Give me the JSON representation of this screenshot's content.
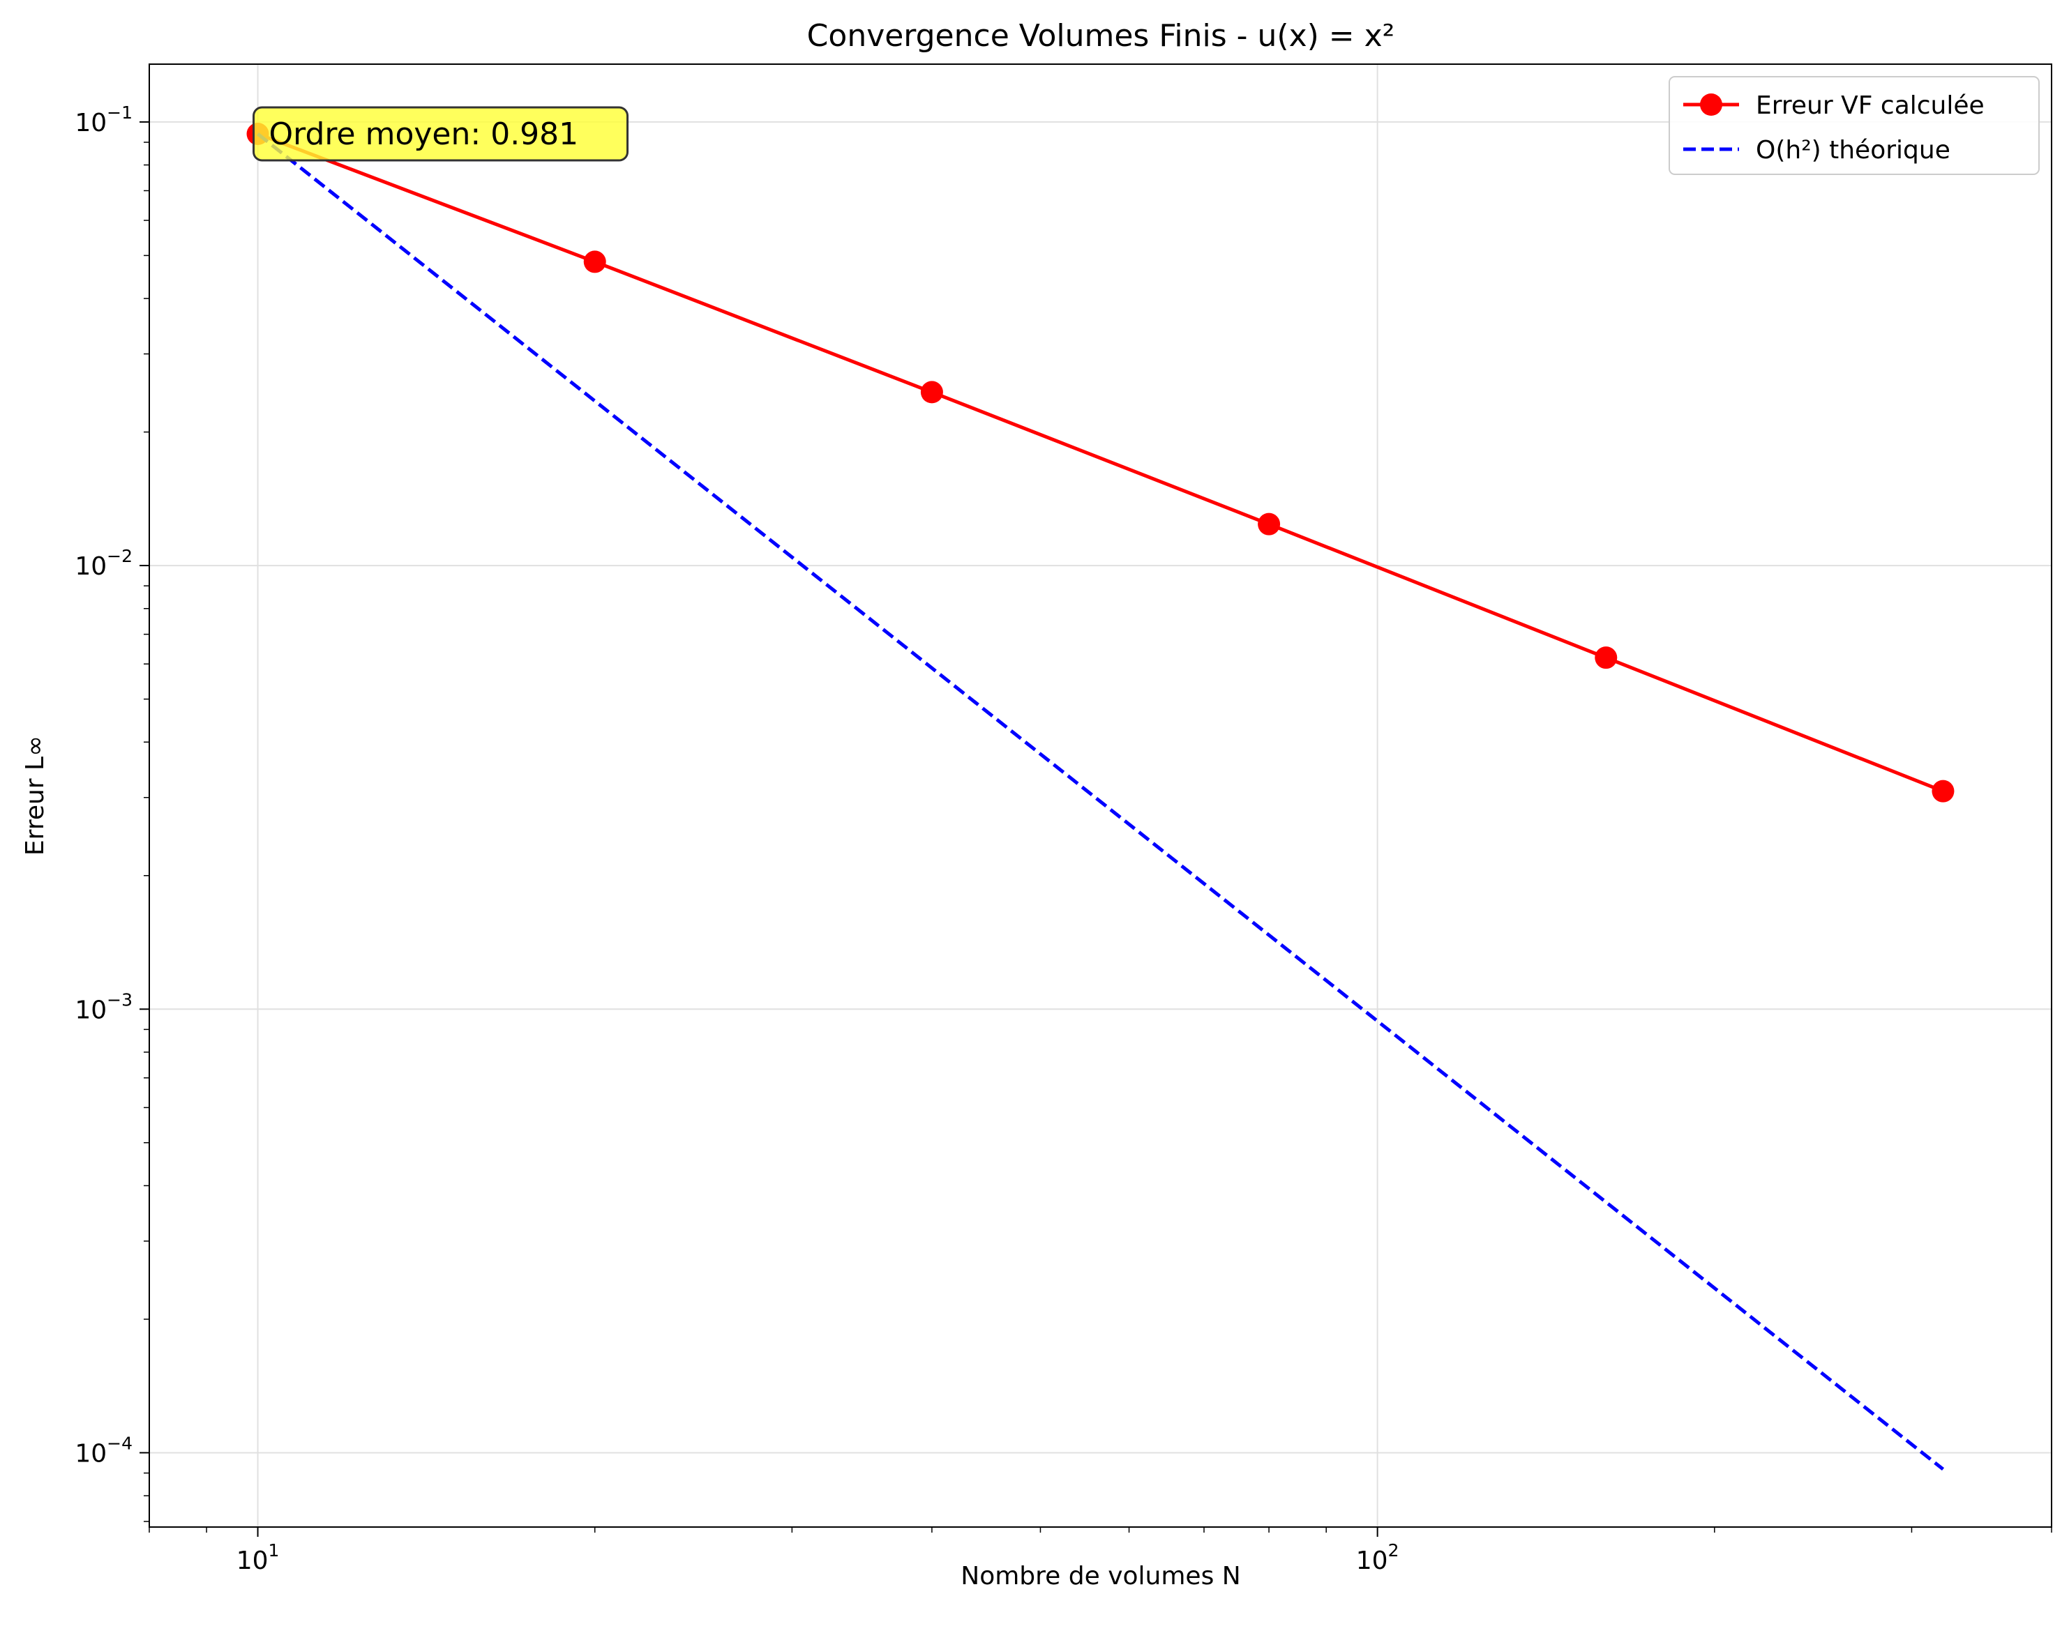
{
  "chart_data": {
    "type": "line",
    "title": "Convergence Volumes Finis - u(x) = x²",
    "xlabel": "Nombre de volumes N",
    "ylabel": "Erreur L∞",
    "xscale": "log",
    "yscale": "log",
    "xlim": [
      8.0,
      400
    ],
    "ylim": [
      6.8e-05,
      0.135
    ],
    "x_ticks": [
      {
        "value": 10,
        "base": "10",
        "exp": "1"
      },
      {
        "value": 100,
        "base": "10",
        "exp": "2"
      }
    ],
    "y_ticks": [
      {
        "value": 0.1,
        "base": "10",
        "exp": "−1"
      },
      {
        "value": 0.01,
        "base": "10",
        "exp": "−2"
      },
      {
        "value": 0.001,
        "base": "10",
        "exp": "−3"
      },
      {
        "value": 0.0001,
        "base": "10",
        "exp": "−4"
      }
    ],
    "grid": true,
    "legend_position": "top-right",
    "series": [
      {
        "name": "Erreur VF calculée",
        "color": "#ff0000",
        "style": "solid",
        "marker": "circle",
        "x": [
          10,
          20,
          40,
          80,
          160,
          320
        ],
        "y": [
          0.094,
          0.0484,
          0.0246,
          0.0124,
          0.0062,
          0.0031
        ]
      },
      {
        "name": "O(h²) théorique",
        "color": "#0000ff",
        "style": "dashed",
        "marker": "none",
        "x": [
          10,
          320
        ],
        "y": [
          0.094,
          9.18e-05
        ]
      }
    ],
    "annotation": {
      "text": "Ordre moyen: 0.981",
      "background": "#ffff33"
    }
  }
}
